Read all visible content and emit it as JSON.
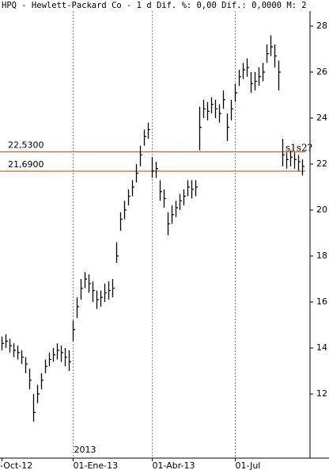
{
  "chart_data": {
    "type": "ohlc",
    "title": "HPQ - Hewlett-Packard Co -  1 d Dif. %: 0,00 Dif.: 0,0000 M: 2",
    "categories": [
      "-Oct-12",
      null,
      null,
      null,
      null,
      null,
      null,
      null,
      null,
      null,
      null,
      null,
      null,
      null,
      null,
      null,
      null,
      null,
      "01-Ene-13",
      null,
      null,
      null,
      null,
      null,
      null,
      null,
      null,
      null,
      null,
      null,
      null,
      null,
      null,
      null,
      null,
      null,
      null,
      null,
      "01-Abr-13",
      null,
      null,
      null,
      null,
      null,
      null,
      null,
      null,
      null,
      null,
      null,
      null,
      null,
      null,
      null,
      null,
      null,
      null,
      null,
      null,
      "01-Jul",
      null,
      null,
      null,
      null,
      null,
      null,
      null,
      null,
      null,
      null,
      null,
      null,
      null,
      null,
      null,
      null,
      null
    ],
    "year_label": "2013",
    "high": [
      14.5,
      14.6,
      14.4,
      14.2,
      14.1,
      13.9,
      13.6,
      13.1,
      12.0,
      12.4,
      12.9,
      13.5,
      13.8,
      14.0,
      14.2,
      14.1,
      14.0,
      13.9,
      15.2,
      16.2,
      17.0,
      17.3,
      17.2,
      16.9,
      16.5,
      16.5,
      16.8,
      16.9,
      17.0,
      18.6,
      19.9,
      20.4,
      20.9,
      21.3,
      22.0,
      22.8,
      23.5,
      23.8,
      22.3,
      22.1,
      21.3,
      20.9,
      19.9,
      20.2,
      20.4,
      20.7,
      20.9,
      21.3,
      21.3,
      21.3,
      24.5,
      24.8,
      24.7,
      24.9,
      24.8,
      24.6,
      25.2,
      24.2,
      24.8,
      25.5,
      26.1,
      26.4,
      26.6,
      26.0,
      26.0,
      26.2,
      26.4,
      27.2,
      27.6,
      27.2,
      26.5,
      23.1,
      22.5,
      22.6,
      22.5,
      22.4,
      22.2
    ],
    "low": [
      13.9,
      14.0,
      13.8,
      13.6,
      13.5,
      13.3,
      12.9,
      12.2,
      10.8,
      11.6,
      12.2,
      12.9,
      13.2,
      13.4,
      13.5,
      13.4,
      13.2,
      13.0,
      14.3,
      15.3,
      16.1,
      16.6,
      16.4,
      16.0,
      15.7,
      15.8,
      16.0,
      16.1,
      16.2,
      17.7,
      19.1,
      19.6,
      20.2,
      20.6,
      21.2,
      21.9,
      22.8,
      23.1,
      21.4,
      21.4,
      20.4,
      20.1,
      18.9,
      19.4,
      19.7,
      20.0,
      20.2,
      20.6,
      20.5,
      20.6,
      22.6,
      24.0,
      23.9,
      24.2,
      24.0,
      23.8,
      24.4,
      23.0,
      23.9,
      24.7,
      25.4,
      25.7,
      25.8,
      25.1,
      25.2,
      25.4,
      25.6,
      26.4,
      26.7,
      26.2,
      25.2,
      21.9,
      21.8,
      21.9,
      21.8,
      21.7,
      21.5
    ],
    "close": [
      14.2,
      14.3,
      14.1,
      13.9,
      13.8,
      13.6,
      13.3,
      12.6,
      11.2,
      12.0,
      12.6,
      13.2,
      13.5,
      13.7,
      13.9,
      13.8,
      13.6,
      13.4,
      14.8,
      15.8,
      16.6,
      17.0,
      16.8,
      16.5,
      16.1,
      16.2,
      16.4,
      16.5,
      16.6,
      18.0,
      19.6,
      20.0,
      20.6,
      21.0,
      21.6,
      22.4,
      23.2,
      23.5,
      21.7,
      21.8,
      20.8,
      20.5,
      19.4,
      19.8,
      20.1,
      20.4,
      20.6,
      21.0,
      20.9,
      21.0,
      23.6,
      24.4,
      24.3,
      24.6,
      24.4,
      24.2,
      24.8,
      23.6,
      24.4,
      25.1,
      25.8,
      26.1,
      26.2,
      25.5,
      25.6,
      25.8,
      26.0,
      26.8,
      27.1,
      26.7,
      26.0,
      22.4,
      22.2,
      22.3,
      22.2,
      22.1,
      21.9
    ],
    "color": "#000000",
    "ylim": [
      9.21,
      28.86
    ],
    "yticks": [
      12,
      14,
      16,
      18,
      20,
      22,
      24,
      26,
      28
    ],
    "hlines": [
      {
        "value": 22.53,
        "label": "22,5300"
      },
      {
        "value": 21.69,
        "label": "21,6900"
      }
    ],
    "hline_color": "#e0601e",
    "annotation": "s1s2?"
  }
}
